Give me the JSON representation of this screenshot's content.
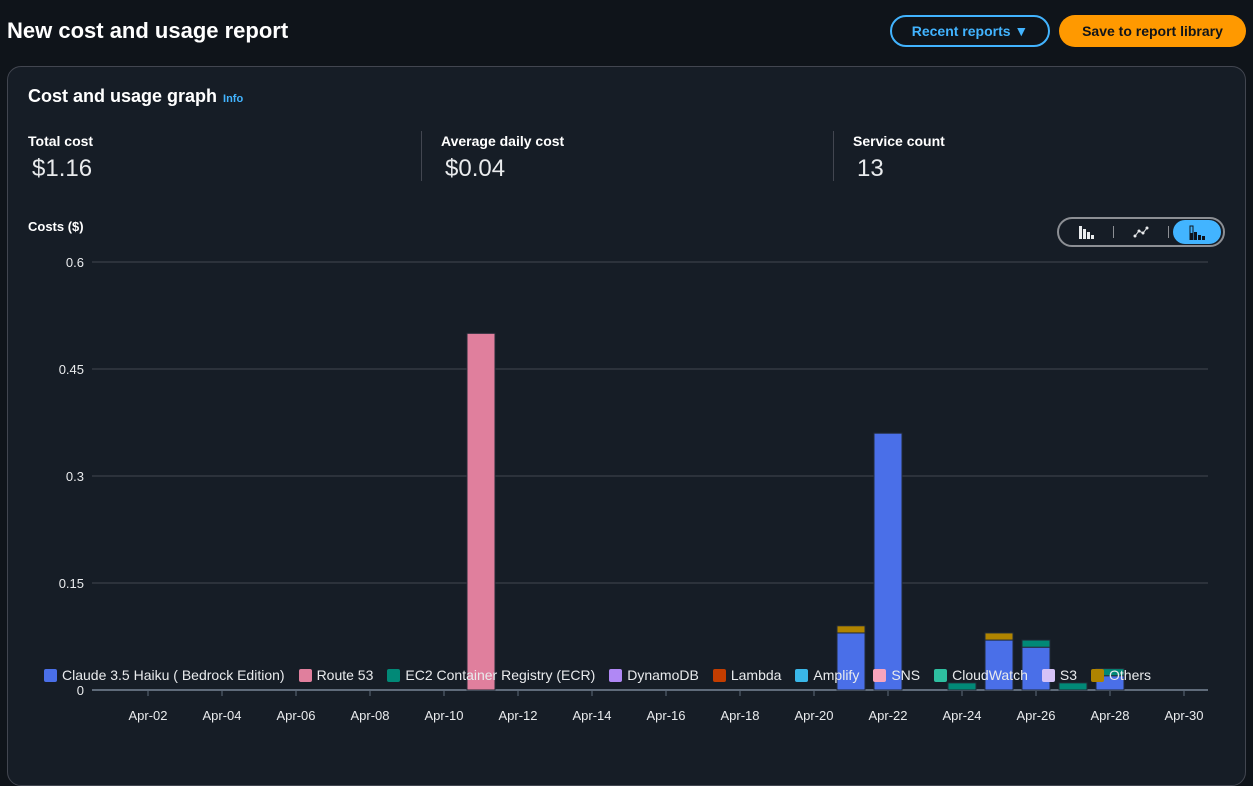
{
  "header": {
    "title": "New cost and usage report",
    "recent_reports": "Recent reports ▼",
    "save": "Save to report library"
  },
  "card": {
    "title": "Cost and usage graph",
    "info": "Info"
  },
  "metrics": [
    {
      "label": "Total cost",
      "value": "$1.16"
    },
    {
      "label": "Average daily cost",
      "value": "$0.04"
    },
    {
      "label": "Service count",
      "value": "13"
    }
  ],
  "toggle": {
    "options": [
      "bar-chart-icon",
      "line-chart-icon",
      "stacked-bar-chart-icon"
    ],
    "selected": "stacked-bar-chart-icon"
  },
  "chart_data": {
    "type": "bar",
    "stacked": true,
    "ylabel": "Costs ($)",
    "ylim": [
      0,
      0.6
    ],
    "yticks": [
      "0",
      "0.15",
      "0.3",
      "0.45",
      "0.6"
    ],
    "xticks": [
      "Apr-02",
      "Apr-04",
      "Apr-06",
      "Apr-08",
      "Apr-10",
      "Apr-12",
      "Apr-14",
      "Apr-16",
      "Apr-18",
      "Apr-20",
      "Apr-22",
      "Apr-24",
      "Apr-26",
      "Apr-28",
      "Apr-30"
    ],
    "series": [
      {
        "name": "Claude 3.5 Haiku ( Bedrock Edition)",
        "color": "#4a6fe8",
        "values": {
          "21": 0.08,
          "22": 0.36,
          "25": 0.07,
          "26": 0.06,
          "28": 0.02
        }
      },
      {
        "name": "Route 53",
        "color": "#e07f9d",
        "values": {
          "11": 0.5
        }
      },
      {
        "name": "EC2 Container Registry (ECR)",
        "color": "#018977",
        "values": {
          "24": 0.01,
          "26": 0.01,
          "27": 0.01,
          "28": 0.01
        }
      },
      {
        "name": "DynamoDB",
        "color": "#b088f5",
        "values": {}
      },
      {
        "name": "Lambda",
        "color": "#c33d00",
        "values": {}
      },
      {
        "name": "Amplify",
        "color": "#3ab7e8",
        "values": {}
      },
      {
        "name": "SNS",
        "color": "#f8a4bd",
        "values": {}
      },
      {
        "name": "CloudWatch",
        "color": "#2ebfa0",
        "values": {}
      },
      {
        "name": "S3",
        "color": "#d5c2f7",
        "values": {}
      },
      {
        "name": "Others",
        "color": "#b08400",
        "values": {
          "21": 0.01,
          "25": 0.01
        }
      }
    ]
  }
}
